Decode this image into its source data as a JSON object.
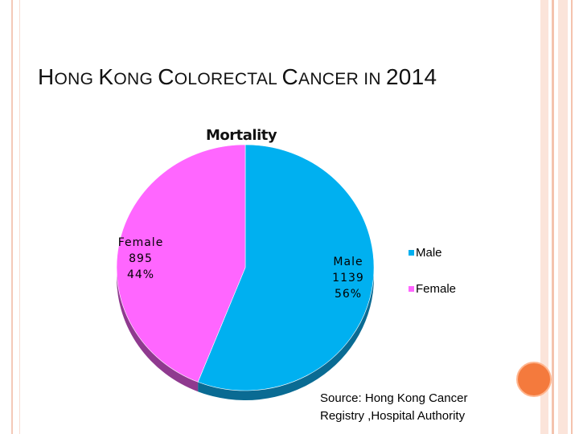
{
  "slide": {
    "title_parts": [
      {
        "text": "H",
        "size": "big"
      },
      {
        "text": "ONG ",
        "size": "small"
      },
      {
        "text": "K",
        "size": "big"
      },
      {
        "text": "ONG ",
        "size": "small"
      },
      {
        "text": "C",
        "size": "big"
      },
      {
        "text": "OLORECTAL ",
        "size": "small"
      },
      {
        "text": "C",
        "size": "big"
      },
      {
        "text": "ANCER ",
        "size": "small"
      },
      {
        "text": "IN ",
        "size": "small"
      },
      {
        "text": "2014",
        "size": "big"
      }
    ],
    "source_line1": "Source:  Hong Kong Cancer",
    "source_line2": "Registry ,Hospital Authority"
  },
  "colors": {
    "male": "#00b0f0",
    "male_side": "#0a6b93",
    "female": "#ff66ff",
    "female_side": "#8f3a8f",
    "stripe_light": "#fbe4da",
    "stripe_mid": "#f4c3ae",
    "accent_orange": "#f47a3d"
  },
  "chart_data": {
    "type": "pie",
    "title": "Mortality",
    "slices": [
      {
        "name": "Male",
        "value": 1139,
        "percent": "56%"
      },
      {
        "name": "Female",
        "value": 895,
        "percent": "44%"
      }
    ],
    "legend": [
      "Male",
      "Female"
    ],
    "legend_position": "right"
  }
}
